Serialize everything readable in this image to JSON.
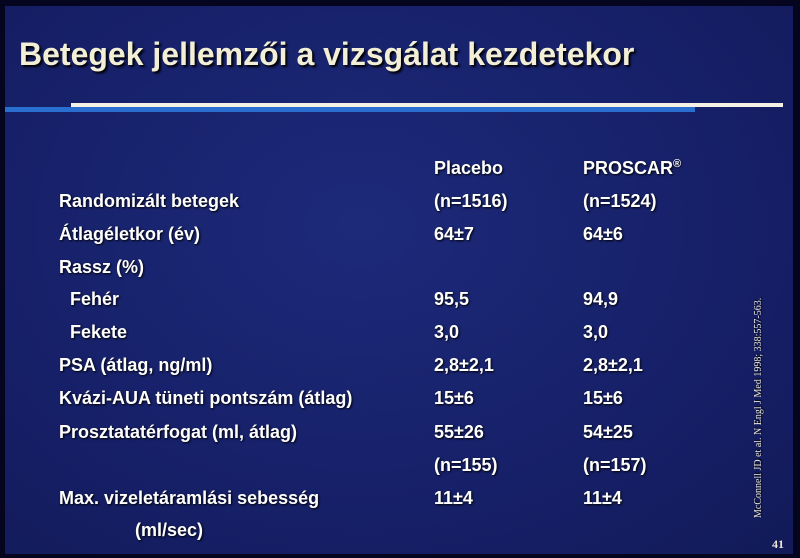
{
  "slide": {
    "title": "Betegek jellemzői a vizsgálat kezdetekor",
    "citation": "McConnell JD et al. N Engl J Med 1998; 338:557-563.",
    "page_number": "41"
  },
  "table": {
    "headers": {
      "placebo": "Placebo",
      "proscar": "PROSCAR",
      "proscar_mark": "®"
    },
    "rows": [
      {
        "label": "Randomizált betegek",
        "placebo": "(n=1516)",
        "proscar": "(n=1524)"
      },
      {
        "label": "Átlagéletkor (év)",
        "placebo": "64±7",
        "proscar": "64±6"
      },
      {
        "label": "Rassz (%)",
        "placebo": "",
        "proscar": ""
      },
      {
        "label": "Fehér",
        "placebo": "95,5",
        "proscar": "94,9"
      },
      {
        "label": "Fekete",
        "placebo": "3,0",
        "proscar": "3,0"
      },
      {
        "label": "PSA (átlag, ng/ml)",
        "placebo": "2,8±2,1",
        "proscar": "2,8±2,1"
      },
      {
        "label": "Kvázi-AUA tüneti pontszám (átlag)",
        "placebo": "15±6",
        "proscar": "15±6"
      },
      {
        "label": "Prosztatatérfogat (ml, átlag)",
        "placebo": "55±26",
        "proscar": "54±25"
      },
      {
        "label": "",
        "placebo": "(n=155)",
        "proscar": "(n=157)"
      },
      {
        "label": "Max. vizeletáramlási sebesség",
        "placebo": "11±4",
        "proscar": "11±4"
      },
      {
        "label": "(ml/sec)",
        "placebo": "",
        "proscar": ""
      }
    ]
  }
}
